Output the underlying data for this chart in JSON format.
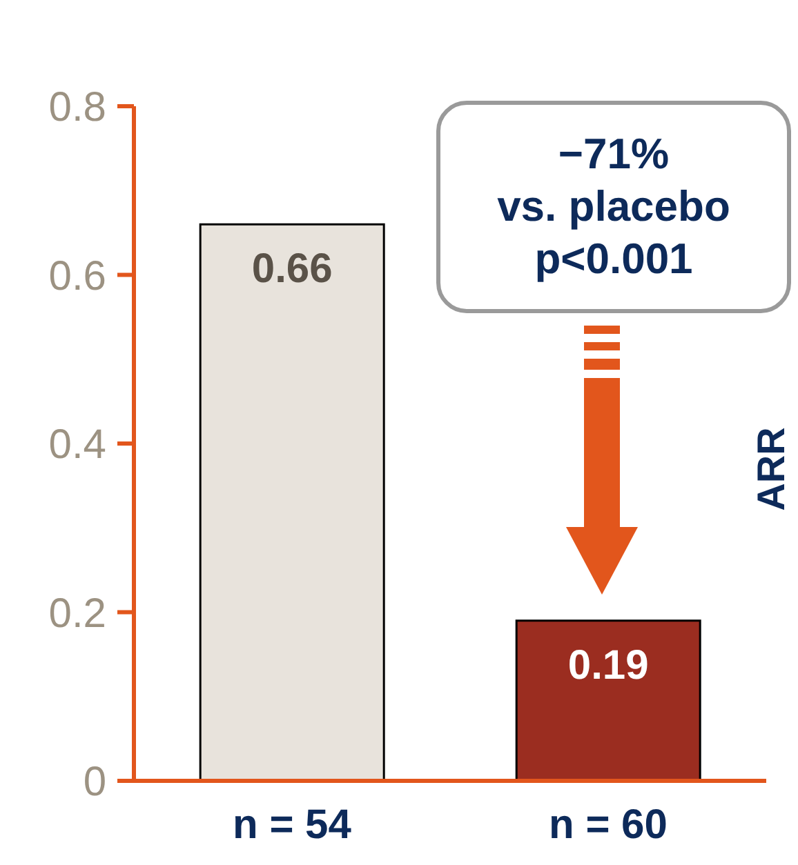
{
  "chart_data": {
    "type": "bar",
    "categories": [
      "n = 54",
      "n = 60"
    ],
    "values": [
      0.66,
      0.19
    ],
    "colors": [
      "#e8e3dc",
      "#9b2d20"
    ],
    "ylim": [
      0,
      0.8
    ],
    "yticks": [
      0,
      0.2,
      0.4,
      0.6,
      0.8
    ],
    "grid": false,
    "legend": false,
    "data_labels": true,
    "annotations": [
      "−71%\nvs. placebo\np<0.001",
      "ARR"
    ]
  }
}
